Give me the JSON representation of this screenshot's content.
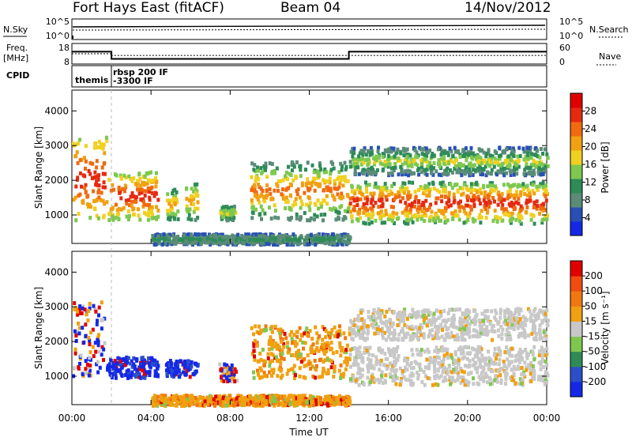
{
  "header": {
    "station": "Fort Hays East (fitACF)",
    "beam": "Beam 04",
    "date": "14/Nov/2012"
  },
  "status_panel": {
    "left_labels": {
      "nsky": "N.Sky",
      "freq_line1": "Freq.",
      "freq_line2": "[MHz]",
      "cpid": "CPID"
    },
    "right_labels": {
      "nsearch": "N.Search",
      "nave": "Nave"
    },
    "noise_ticks_left": [
      "10^5",
      "10^0"
    ],
    "noise_ticks_right": [
      "10^5",
      "10^0"
    ],
    "freq_ticks": [
      "18",
      "8"
    ],
    "nave_ticks": [
      "60",
      "0"
    ],
    "cpid_segments": [
      {
        "label": "themis",
        "start_hr": 0.0
      },
      {
        "label": "rbsp 200 IF",
        "label2": "-3300 IF",
        "start_hr": 2.0
      }
    ],
    "freq_mhz": [
      {
        "start_hr": 0.0,
        "end_hr": 2.0,
        "value": 14.0
      },
      {
        "start_hr": 2.0,
        "end_hr": 14.0,
        "value": 10.5
      },
      {
        "start_hr": 14.0,
        "end_hr": 24.0,
        "value": 14.0
      }
    ],
    "nave": [
      {
        "start_hr": 0.0,
        "end_hr": 2.0,
        "value": 30
      },
      {
        "start_hr": 2.0,
        "end_hr": 24.0,
        "value": 25
      }
    ]
  },
  "chart_data": [
    {
      "type": "heatmap",
      "name": "power",
      "ylabel": "Slant Range [km]",
      "xlabel": "",
      "ylim": [
        180,
        4600
      ],
      "xlim_hr": [
        0,
        24
      ],
      "yticks": [
        "4000",
        "3000",
        "2000",
        "1000"
      ],
      "ytick_values": [
        4000,
        3000,
        2000,
        1000
      ],
      "colorbar": {
        "label": "Power [dB]",
        "ticks": [
          "28",
          "24",
          "20",
          "16",
          "12",
          "8",
          "4"
        ],
        "colors": [
          "#1428e6",
          "#2850b4",
          "#5a8c78",
          "#2e8b57",
          "#7ec850",
          "#f0d020",
          "#f0a010",
          "#f06a10",
          "#e52a10",
          "#e00000"
        ]
      },
      "regions": [
        {
          "t0": 0.0,
          "t1": 1.7,
          "r0": 900,
          "r1": 3300,
          "v0": 14,
          "v1": 28
        },
        {
          "t0": 1.8,
          "t1": 4.3,
          "r0": 900,
          "r1": 2300,
          "v0": 12,
          "v1": 28
        },
        {
          "t0": 4.7,
          "t1": 5.3,
          "r0": 900,
          "r1": 1800,
          "v0": 8,
          "v1": 20
        },
        {
          "t0": 5.7,
          "t1": 6.3,
          "r0": 900,
          "r1": 2000,
          "v0": 8,
          "v1": 20
        },
        {
          "t0": 7.4,
          "t1": 8.2,
          "r0": 900,
          "r1": 1300,
          "v0": 8,
          "v1": 16
        },
        {
          "t0": 9.0,
          "t1": 14.0,
          "r0": 900,
          "r1": 2600,
          "v0": 6,
          "v1": 24
        },
        {
          "t0": 14.0,
          "t1": 24.0,
          "r0": 800,
          "r1": 2000,
          "v0": 10,
          "v1": 28
        },
        {
          "t0": 14.0,
          "t1": 24.0,
          "r0": 2200,
          "r1": 3000,
          "v0": 4,
          "v1": 16
        },
        {
          "t0": 4.0,
          "t1": 14.0,
          "r0": 200,
          "r1": 500,
          "v0": 4,
          "v1": 10
        }
      ]
    },
    {
      "type": "heatmap",
      "name": "velocity",
      "ylabel": "Slant Range [km]",
      "xlabel": "Time UT",
      "ylim": [
        180,
        4600
      ],
      "xlim_hr": [
        0,
        24
      ],
      "yticks": [
        "4000",
        "3000",
        "2000",
        "1000"
      ],
      "ytick_values": [
        4000,
        3000,
        2000,
        1000
      ],
      "xticks": [
        "00:00",
        "04:00",
        "08:00",
        "12:00",
        "16:00",
        "20:00",
        "00:00"
      ],
      "xtick_values": [
        0,
        4,
        8,
        12,
        16,
        20,
        24
      ],
      "colorbar": {
        "label": "Velocity [m s⁻¹]",
        "ticks": [
          "200",
          "100",
          "50",
          "15",
          "-15",
          "-50",
          "-100",
          "-200"
        ],
        "colors": [
          "#1428e6",
          "#2b4fc8",
          "#2e8b57",
          "#7ec850",
          "#c8c8c8",
          "#f0a010",
          "#f07810",
          "#f04c10",
          "#e00000"
        ]
      },
      "regions": [
        {
          "t0": 0.0,
          "t1": 1.6,
          "r0": 1000,
          "r1": 3200,
          "c": "blue_mix"
        },
        {
          "t0": 1.7,
          "t1": 4.3,
          "r0": 1000,
          "r1": 1600,
          "c": "blue"
        },
        {
          "t0": 4.7,
          "t1": 6.3,
          "r0": 1000,
          "r1": 1500,
          "c": "blue"
        },
        {
          "t0": 7.4,
          "t1": 8.3,
          "r0": 900,
          "r1": 1400,
          "c": "blue_mix"
        },
        {
          "t0": 9.0,
          "t1": 14.0,
          "r0": 1000,
          "r1": 2500,
          "c": "orange"
        },
        {
          "t0": 14.0,
          "t1": 24.0,
          "r0": 800,
          "r1": 1900,
          "c": "gray"
        },
        {
          "t0": 14.0,
          "t1": 24.0,
          "r0": 2100,
          "r1": 3000,
          "c": "gray"
        },
        {
          "t0": 4.0,
          "t1": 14.0,
          "r0": 200,
          "r1": 500,
          "c": "orange"
        }
      ]
    }
  ]
}
